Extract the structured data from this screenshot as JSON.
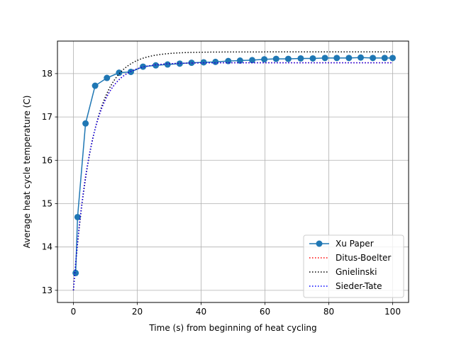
{
  "chart_data": {
    "type": "line",
    "title": "",
    "xlabel": "Time (s) from beginning of heat cycling",
    "ylabel": "Average heat cycle temperature (C)",
    "xlim": [
      -5,
      105
    ],
    "ylim": [
      12.72,
      18.75
    ],
    "xticks": [
      0,
      20,
      40,
      60,
      80,
      100
    ],
    "yticks": [
      13,
      14,
      15,
      16,
      17,
      18
    ],
    "grid": true,
    "legend_position": "lower-right",
    "series": [
      {
        "name": "Xu Paper",
        "style": "solid-markers",
        "color": "#1f77b4",
        "x": [
          0.7,
          1.3,
          3.8,
          6.8,
          10.5,
          14.3,
          18.0,
          21.8,
          25.8,
          29.5,
          33.3,
          37.0,
          40.8,
          44.5,
          48.5,
          52.2,
          56.0,
          59.8,
          63.5,
          67.3,
          71.2,
          75.0,
          78.8,
          82.5,
          86.3,
          90.0,
          93.8,
          97.5,
          100.0
        ],
        "y": [
          13.4,
          14.69,
          16.85,
          17.72,
          17.9,
          18.02,
          18.04,
          18.16,
          18.19,
          18.21,
          18.23,
          18.25,
          18.26,
          18.27,
          18.29,
          18.3,
          18.31,
          18.33,
          18.34,
          18.34,
          18.35,
          18.35,
          18.36,
          18.36,
          18.36,
          18.37,
          18.36,
          18.36,
          18.36
        ]
      },
      {
        "name": "Ditus-Boelter",
        "style": "dotted",
        "color": "#ff0000",
        "T0": 13.0,
        "Tinf": 18.25,
        "tau": 5.5,
        "t_end": 100
      },
      {
        "name": "Gnielinski",
        "style": "dotted",
        "color": "#000000",
        "T0": 13.0,
        "Tinf": 18.5,
        "tau": 6.0,
        "t_end": 100
      },
      {
        "name": "Sieder-Tate",
        "style": "dotted",
        "color": "#0000ff",
        "T0": 13.0,
        "Tinf": 18.25,
        "tau": 5.5,
        "t_end": 100
      }
    ]
  }
}
